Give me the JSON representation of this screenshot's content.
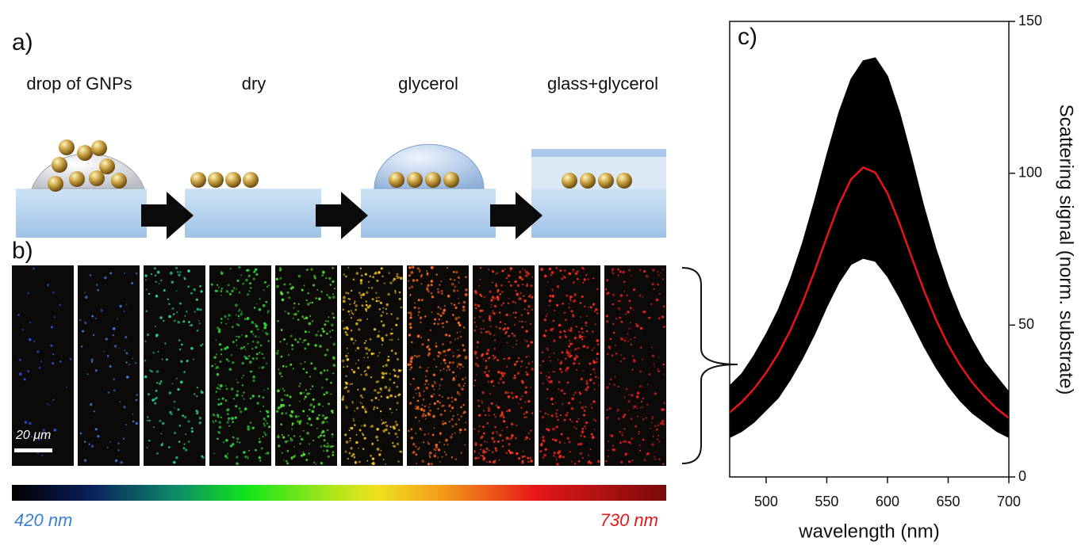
{
  "panel_a": {
    "label": "a)",
    "steps": [
      "drop of GNPs",
      "dry",
      "glycerol",
      "glass+glycerol"
    ]
  },
  "panel_b": {
    "label": "b)",
    "scale_bar": "20 μm",
    "colorbar": {
      "start": "420 nm",
      "end": "730 nm"
    }
  },
  "chart_data": {
    "type": "line",
    "label": "c)",
    "x_label": "wavelength (nm)",
    "y_label": "Scattering signal (norm. substrate)",
    "x": [
      470,
      480,
      490,
      500,
      510,
      520,
      530,
      540,
      550,
      560,
      570,
      580,
      590,
      600,
      610,
      620,
      630,
      640,
      650,
      660,
      670,
      680,
      690,
      700
    ],
    "series": [
      {
        "color": "#000000",
        "values": [
          30,
          34,
          40,
          47,
          55,
          65,
          77,
          91,
          106,
          120,
          131,
          137,
          138,
          132,
          120,
          105,
          89,
          75,
          63,
          53,
          45,
          38,
          33,
          28
        ]
      },
      {
        "color": "#000000",
        "values": [
          13,
          15,
          18,
          22,
          26,
          32,
          39,
          47,
          56,
          64,
          70,
          72,
          71,
          66,
          59,
          51,
          43,
          36,
          30,
          25,
          21,
          18,
          15,
          13
        ]
      },
      {
        "color": "#e8141c",
        "values": [
          21.2,
          24.7,
          29.0,
          34.3,
          40.6,
          48.3,
          57.4,
          67.8,
          79.0,
          89.7,
          98.0,
          101.9,
          100.2,
          93.4,
          83.4,
          72.3,
          61.4,
          51.8,
          43.5,
          36.7,
          31.0,
          26.4,
          22.5,
          19.4
        ]
      }
    ],
    "xlim": [
      470,
      700
    ],
    "ylim": [
      0,
      150
    ],
    "xticks": [
      500,
      550,
      600,
      650,
      700
    ],
    "yticks": [
      0,
      50,
      100,
      150
    ],
    "y_axis_side": "right"
  }
}
